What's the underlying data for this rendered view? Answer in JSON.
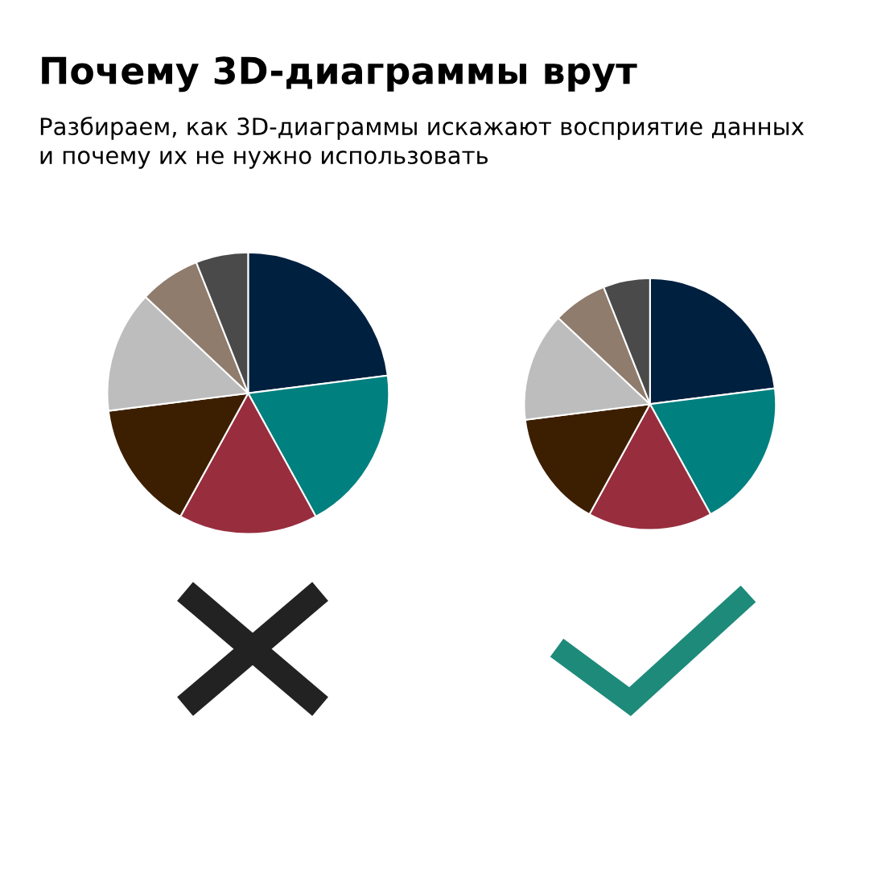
{
  "chart_data": [
    {
      "type": "pie",
      "title": "Почему 3D-диаграммы врут",
      "subtitle": "Разбираем, как 3D-диаграммы искажают восприятие данных и почему их не нужно использовать",
      "categories": [
        null,
        null,
        null,
        null,
        null,
        null,
        null
      ],
      "values": [
        23,
        19,
        16,
        15,
        14,
        7,
        6
      ],
      "colors": [
        "#00203f",
        "#00807f",
        "#982d3e",
        "#3c1f00",
        "#bdbdbd",
        "#8f7c6d",
        "#4a4a4a"
      ]
    },
    {
      "type": "pie",
      "categories": [
        null,
        null,
        null,
        null,
        null,
        null,
        null
      ],
      "values": [
        23,
        19,
        16,
        15,
        14,
        7,
        6
      ],
      "colors": [
        "#00203f",
        "#00807f",
        "#982d3e",
        "#3c1f00",
        "#bdbdbd",
        "#8f7c6d",
        "#4a4a4a"
      ]
    }
  ]
}
